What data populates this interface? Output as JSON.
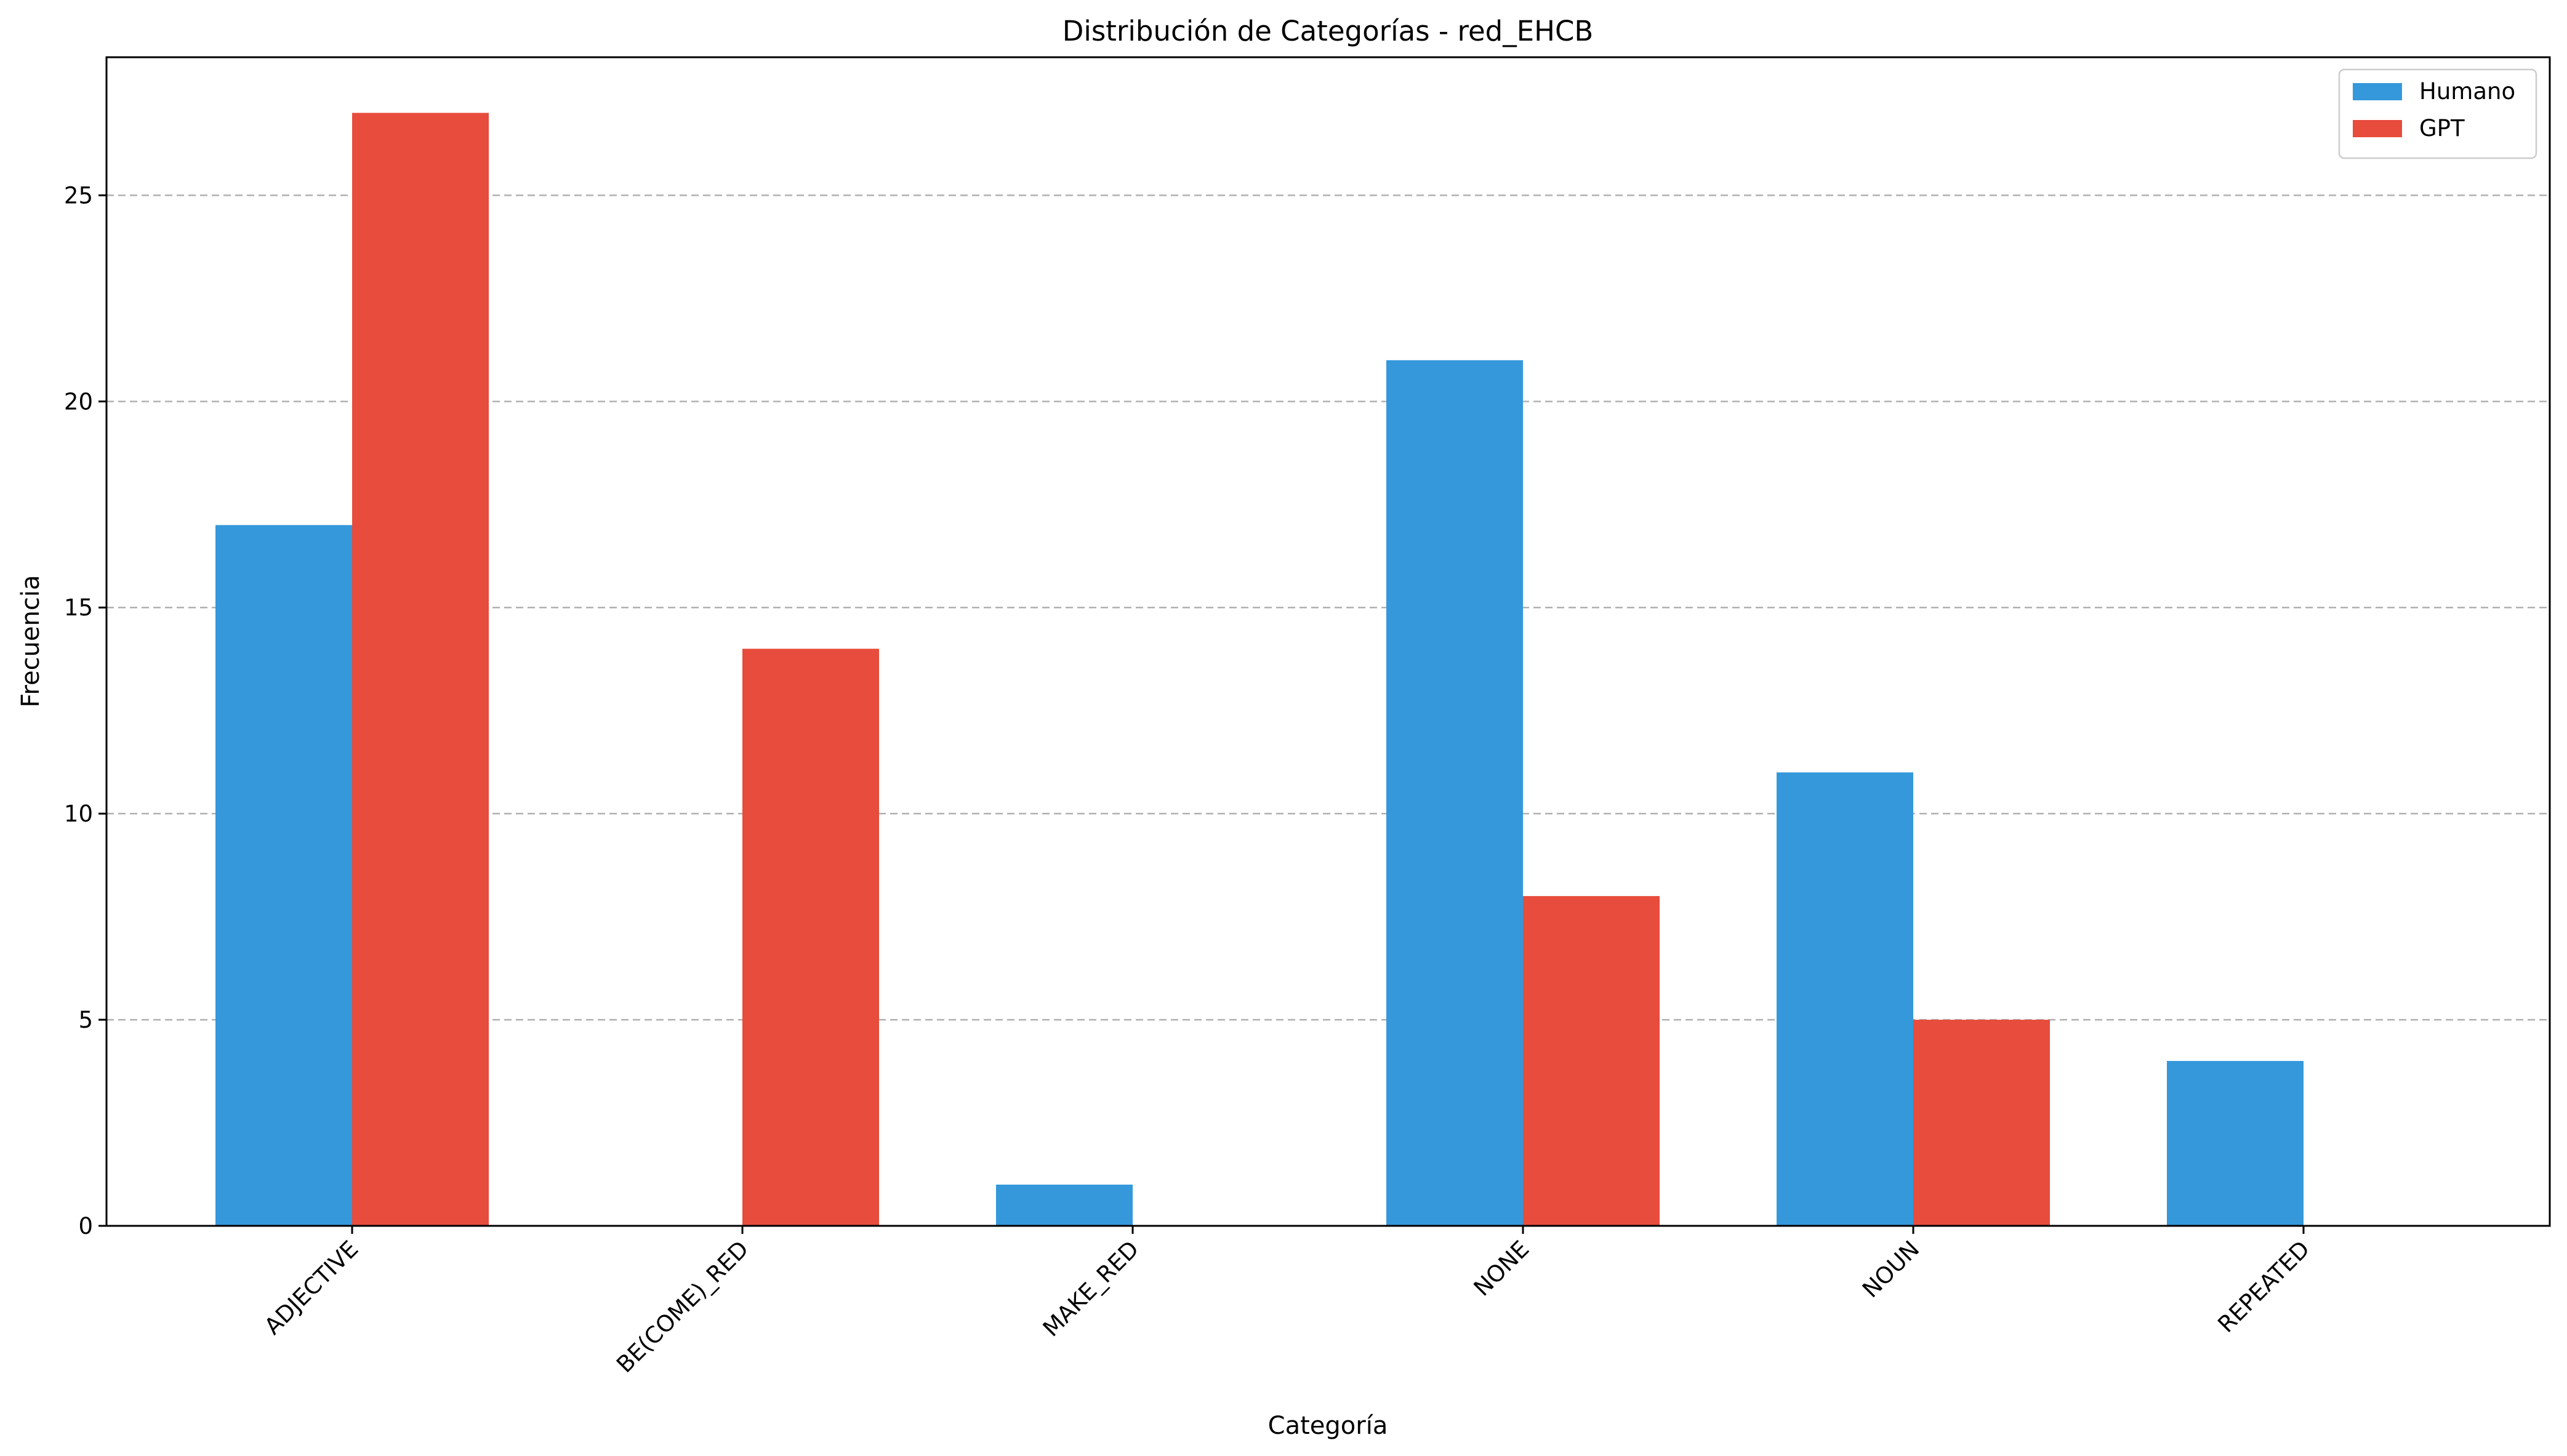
{
  "chart_data": {
    "type": "bar",
    "title": "Distribución de Categorías - red_EHCB",
    "xlabel": "Categoría",
    "ylabel": "Frecuencia",
    "categories": [
      "ADJECTIVE",
      "BE(COME)_RED",
      "MAKE_RED",
      "NONE",
      "NOUN",
      "REPEATED"
    ],
    "series": [
      {
        "name": "Humano",
        "values": [
          17,
          0,
          1,
          21,
          11,
          4
        ],
        "color": "#3498db"
      },
      {
        "name": "GPT",
        "values": [
          27,
          14,
          0,
          8,
          5,
          0
        ],
        "color": "#e74c3c"
      }
    ],
    "ylim": [
      0,
      28.35
    ],
    "yticks": [
      "0",
      "5",
      "10",
      "15",
      "20",
      "25"
    ],
    "grid": "y-dashed",
    "legend_position": "top-right"
  }
}
